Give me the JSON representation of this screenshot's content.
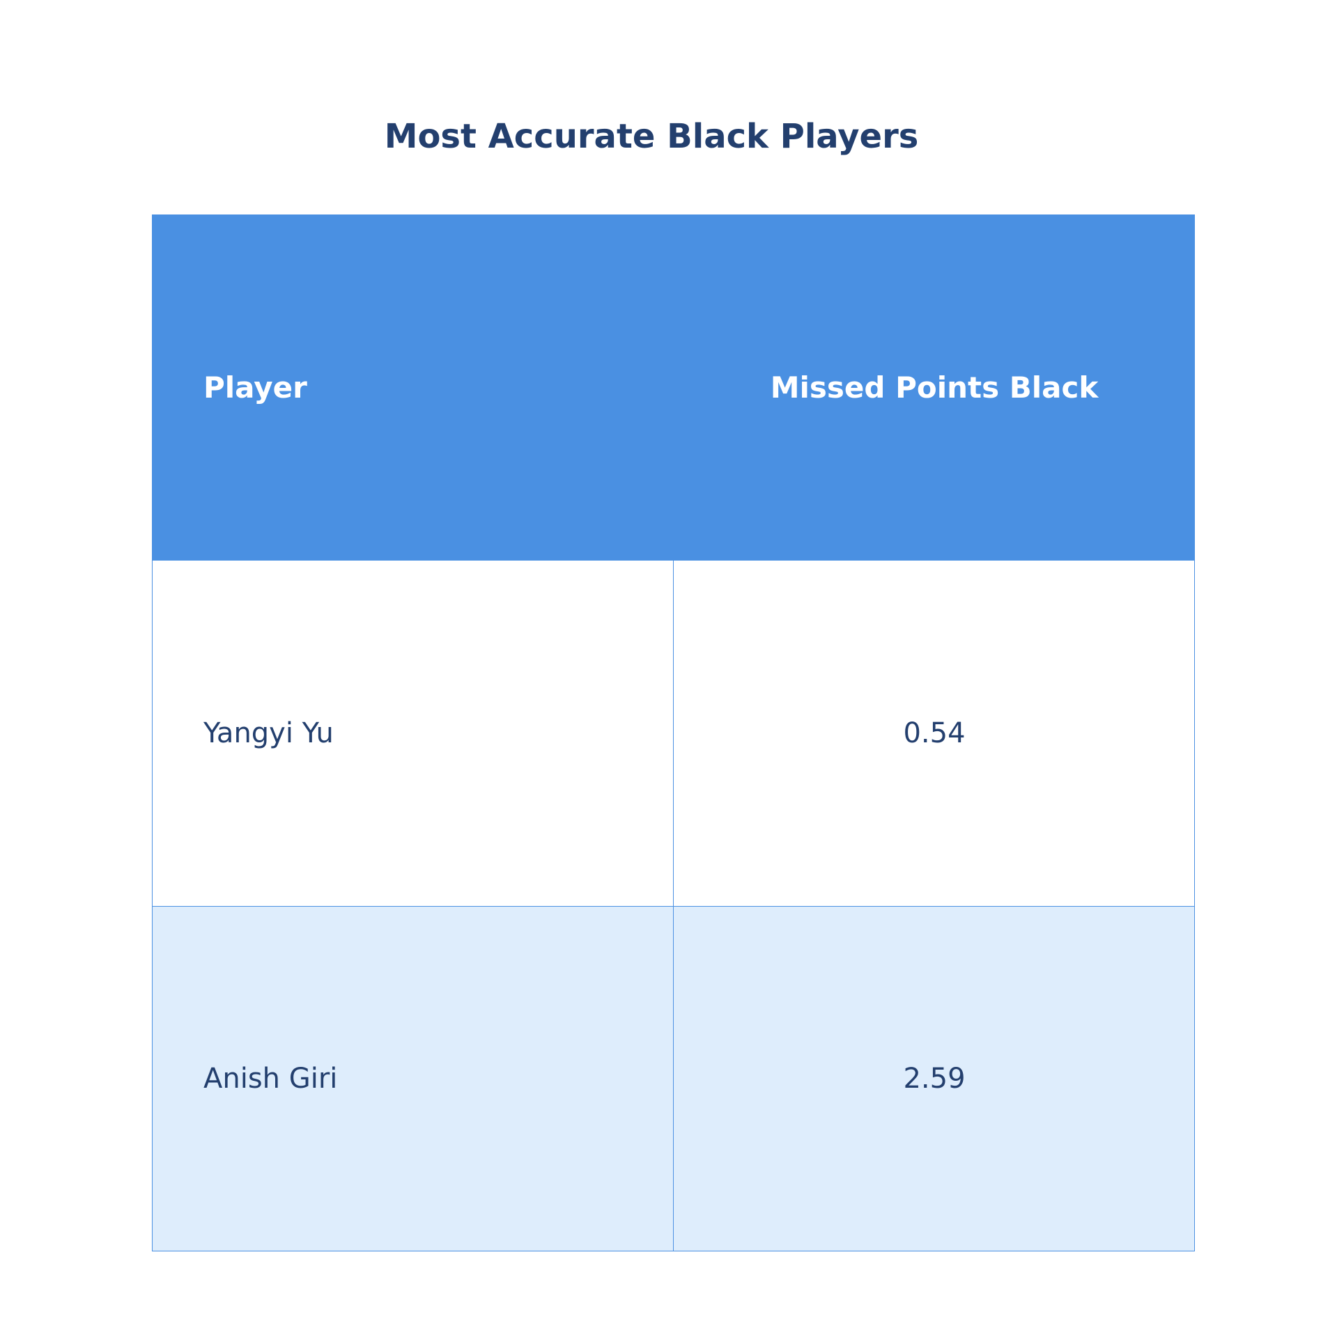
{
  "chart_data": {
    "type": "table",
    "title": "Most Accurate Black Players",
    "columns": [
      "Player",
      "Missed Points Black"
    ],
    "rows": [
      {
        "player": "Yangyi Yu",
        "missed_points_black": "0.54"
      },
      {
        "player": "Anish Giri",
        "missed_points_black": "2.59"
      }
    ],
    "colors": {
      "title": "#233f6e",
      "header_bg": "#4a90e2",
      "header_text": "#ffffff",
      "row_alt_bg": "#deedfc",
      "cell_text": "#233f6e",
      "border": "#4a90e2"
    }
  }
}
